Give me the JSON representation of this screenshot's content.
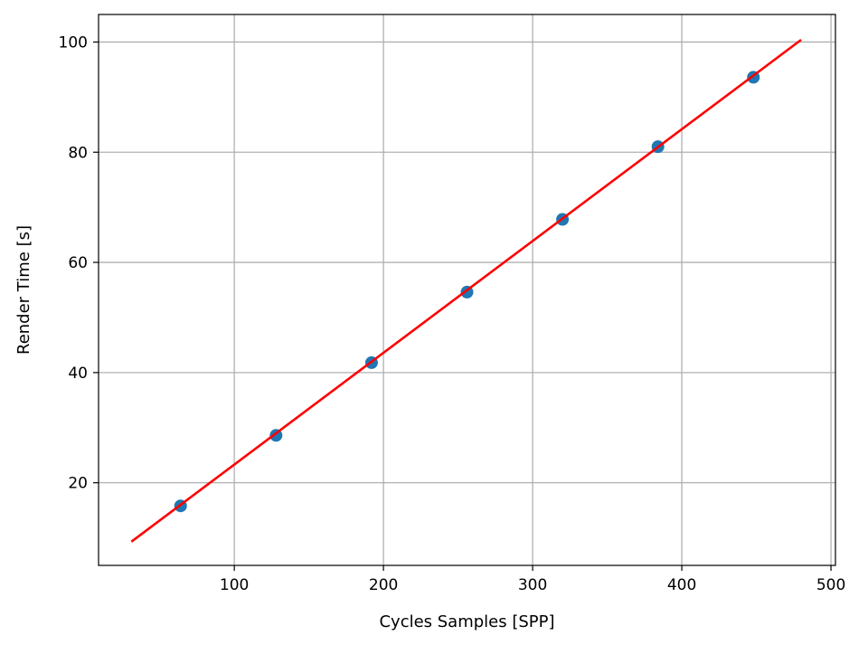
{
  "chart_data": {
    "type": "scatter",
    "title": "",
    "xlabel": "Cycles Samples [SPP]",
    "ylabel": "Render Time [s]",
    "xlim": [
      9,
      503
    ],
    "ylim": [
      5,
      105
    ],
    "xticks": [
      100,
      200,
      300,
      400,
      500
    ],
    "yticks": [
      20,
      40,
      60,
      80,
      100
    ],
    "grid": true,
    "series": [
      {
        "type": "scatter",
        "color": "#1f77b4",
        "x": [
          64,
          128,
          192,
          256,
          320,
          384,
          448
        ],
        "y": [
          15.8,
          28.6,
          41.8,
          54.6,
          67.8,
          81.0,
          93.6
        ]
      },
      {
        "type": "line",
        "color": "#ff0000",
        "x": [
          31,
          480
        ],
        "y": [
          9.3,
          100.4
        ]
      }
    ]
  }
}
